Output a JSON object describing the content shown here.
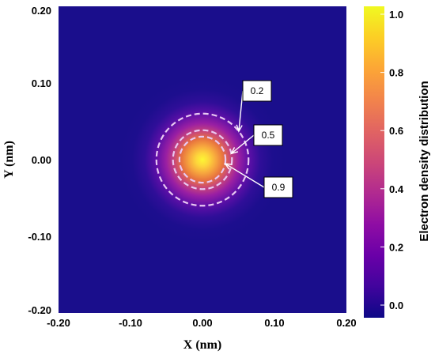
{
  "chart_data": {
    "type": "heatmap",
    "title": "",
    "xlabel": "X (nm)",
    "ylabel": "Y (nm)",
    "xlim": [
      -0.2,
      0.2
    ],
    "ylim": [
      -0.2,
      0.2
    ],
    "x_ticks": [
      "-0.20",
      "-0.10",
      "0.00",
      "0.10",
      "0.20"
    ],
    "y_ticks": [
      "0.20",
      "0.10",
      "0.00",
      "-0.10",
      "-0.20"
    ],
    "x_tick_values": [
      -0.2,
      -0.1,
      0.0,
      0.1,
      0.2
    ],
    "y_tick_values": [
      0.2,
      0.1,
      0.0,
      -0.1,
      -0.2
    ],
    "center": [
      0.0,
      0.0
    ],
    "peak_value": 1.0,
    "colormap": "plasma",
    "colorbar": {
      "label": "Electron density distribution",
      "range": [
        0.0,
        1.0
      ],
      "ticks": [
        "0.0",
        "0.2",
        "0.4",
        "0.6",
        "0.8",
        "1.0"
      ],
      "tick_values": [
        0.0,
        0.2,
        0.4,
        0.6,
        0.8,
        1.0
      ]
    },
    "contours": [
      {
        "label": "0.2",
        "level": 0.2,
        "radius": 0.064
      },
      {
        "label": "0.5",
        "level": 0.5,
        "radius": 0.041
      },
      {
        "label": "0.9",
        "level": 0.9,
        "radius": 0.032
      }
    ],
    "colors": {
      "background": "#1a0e8c",
      "contour": "#e9c8f2"
    }
  }
}
